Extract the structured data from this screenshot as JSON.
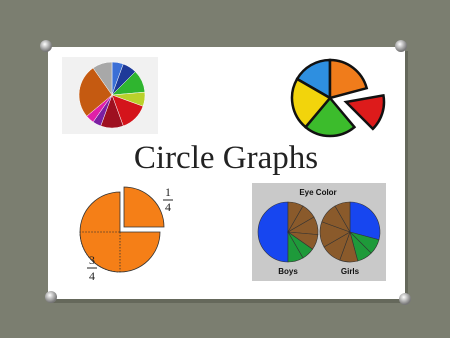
{
  "slide": {
    "title": "Circle Graphs",
    "fraction_quarter": {
      "numerator": "1",
      "denominator": "4"
    },
    "fraction_three_quarters": {
      "numerator": "3",
      "denominator": "4"
    },
    "eye_color": {
      "title": "Eye Color",
      "left_label": "Boys",
      "right_label": "Girls"
    }
  }
}
